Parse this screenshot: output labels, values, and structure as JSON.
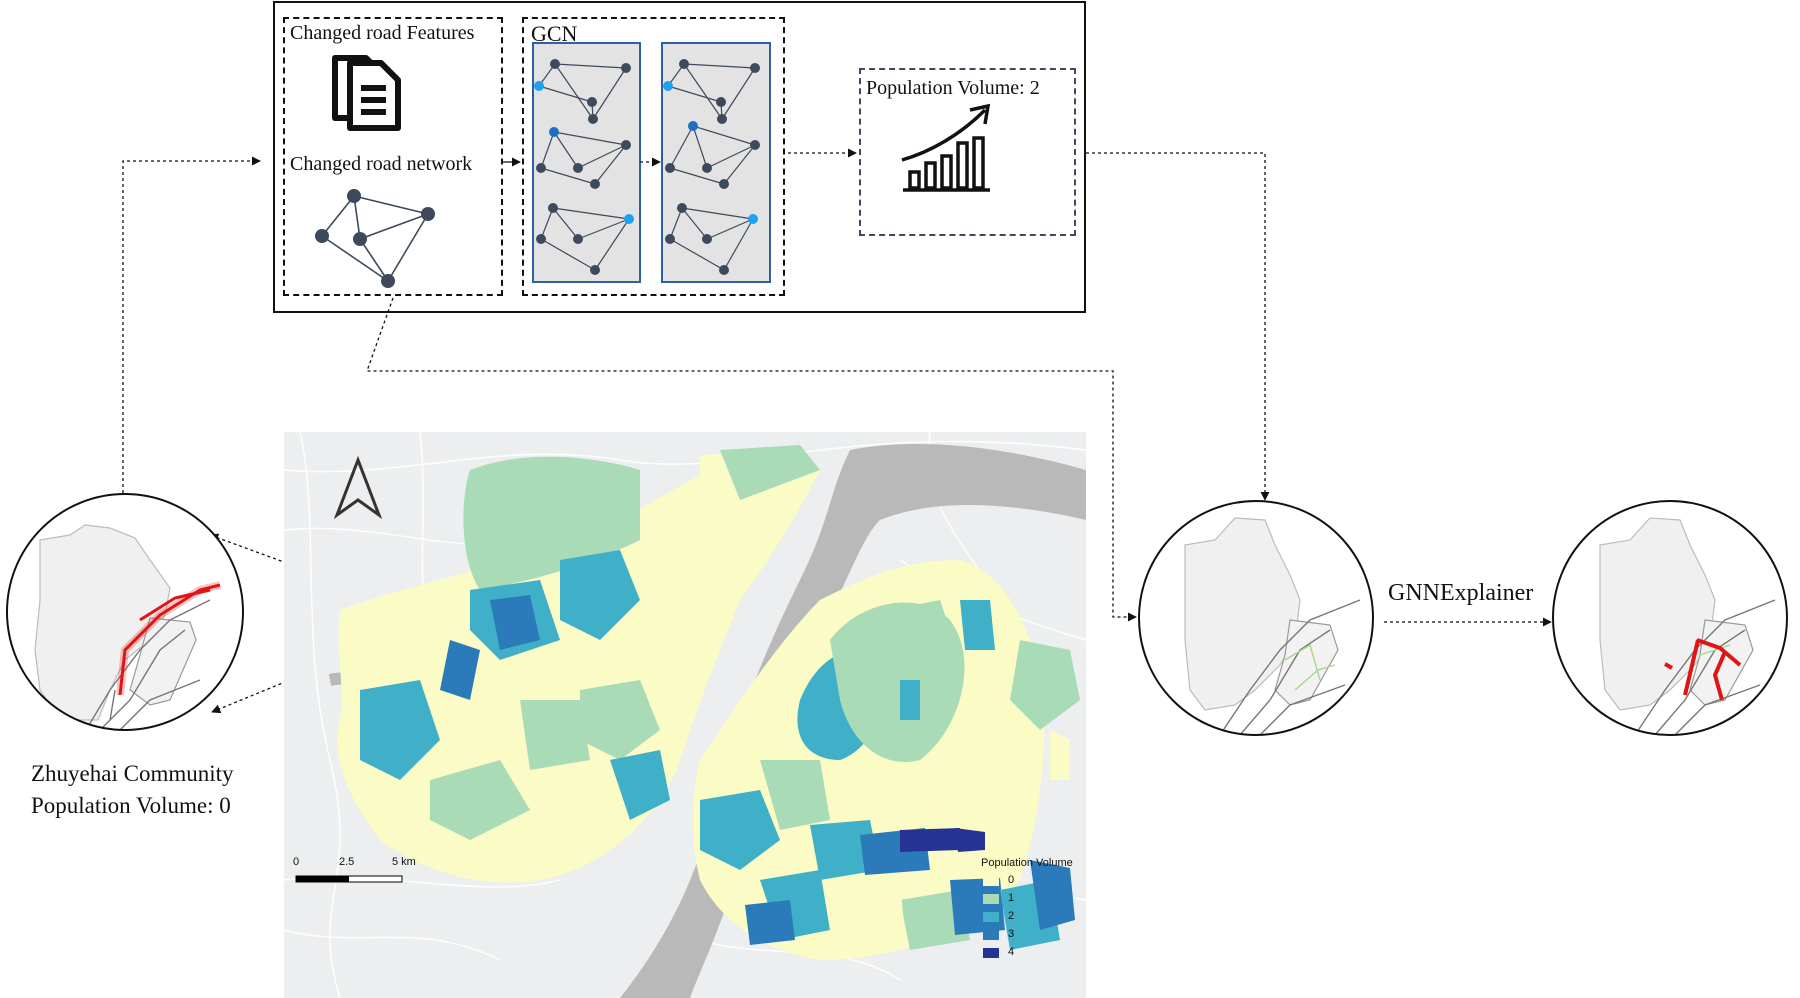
{
  "pipeline": {
    "features_title": "Changed road Features",
    "network_title": "Changed road network",
    "gcn_title": "GCN",
    "output_title": "Population Volume: 2"
  },
  "community": {
    "name": "Zhuyehai Community",
    "volume": "Population Volume: 0"
  },
  "explainer_label": "GNNExplainer",
  "map": {
    "scalebar": {
      "t0": "0",
      "t1": "2.5",
      "t2": "5 km"
    },
    "legend": {
      "title": "Population Volume",
      "items": [
        {
          "label": "0",
          "color": "#fbfbc6"
        },
        {
          "label": "1",
          "color": "#a9dbb7"
        },
        {
          "label": "2",
          "color": "#3fb0c7"
        },
        {
          "label": "3",
          "color": "#2b7bba"
        },
        {
          "label": "4",
          "color": "#253494"
        }
      ]
    }
  },
  "colors": {
    "highlight": "#e01414",
    "node_dark": "#3d4a5c",
    "node_light": "#1da1f2",
    "node_mid": "#1f6fc0",
    "gcn_border": "#2f5fa8",
    "gcn_fill": "#e3e3e3"
  }
}
